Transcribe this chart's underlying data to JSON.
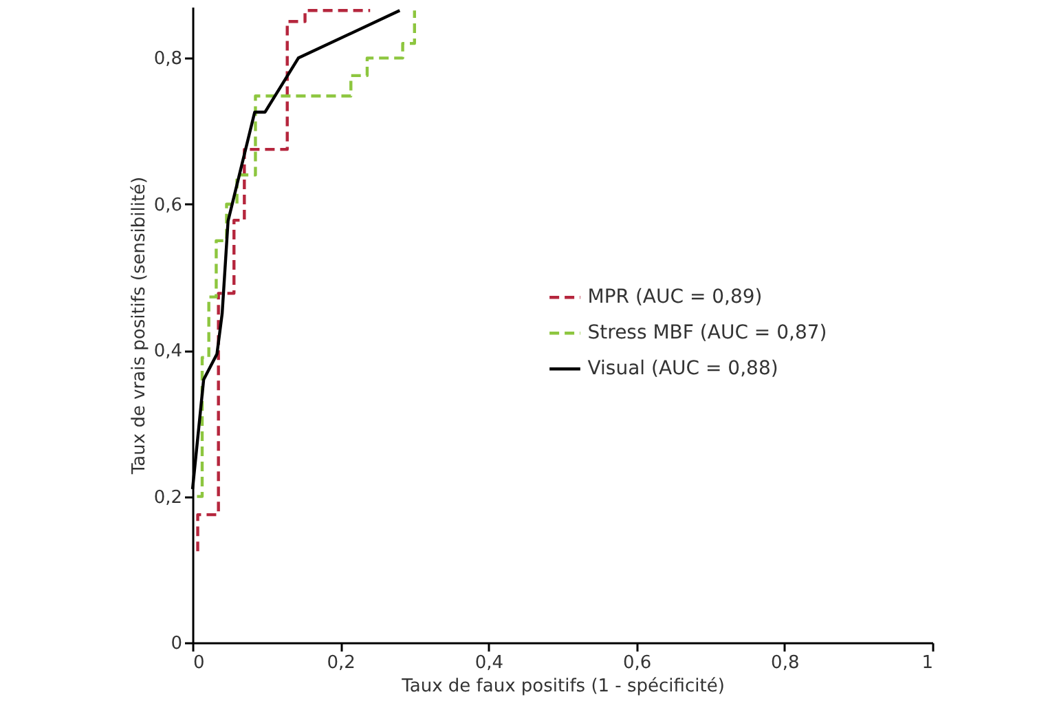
{
  "chart_data": {
    "type": "line",
    "xlabel": "Taux de faux positifs (1 - spécificité)",
    "ylabel": "Taux de vrais positifs (sensibilité)",
    "xlim": [
      0,
      1
    ],
    "ylim": [
      0,
      0.87
    ],
    "xticks": [
      0,
      {
        "value": 0.2,
        "label": "0,2"
      },
      {
        "value": 0.4,
        "label": "0,4"
      },
      {
        "value": 0.6,
        "label": "0,6"
      },
      {
        "value": 0.8,
        "label": "0,8"
      },
      1
    ],
    "yticks": [
      0,
      {
        "value": 0.2,
        "label": "0,2"
      },
      {
        "value": 0.4,
        "label": "0,4"
      },
      {
        "value": 0.6,
        "label": "0,6"
      },
      {
        "value": 0.8,
        "label": "0,8"
      }
    ],
    "legend": "right",
    "marker": "none",
    "series": [
      {
        "name": "MPR (AUC = 0,89)",
        "color": "#b5263d",
        "line_style": "dashed",
        "x": [
          0.007,
          0.007,
          0.035,
          0.035,
          0.056,
          0.056,
          0.07,
          0.07,
          0.128,
          0.128,
          0.152,
          0.152,
          0.24
        ],
        "values": [
          0.125,
          0.175,
          0.175,
          0.478,
          0.478,
          0.578,
          0.578,
          0.675,
          0.675,
          0.85,
          0.85,
          0.865,
          0.865
        ]
      },
      {
        "name": "Stress MBF (AUC = 0,87)",
        "color": "#8dc63f",
        "line_style": "dashed",
        "x": [
          0.006,
          0.013,
          0.013,
          0.022,
          0.022,
          0.032,
          0.032,
          0.046,
          0.046,
          0.06,
          0.06,
          0.085,
          0.085,
          0.214,
          0.214,
          0.236,
          0.236,
          0.284,
          0.284,
          0.3,
          0.3
        ],
        "values": [
          0.2,
          0.2,
          0.39,
          0.39,
          0.473,
          0.473,
          0.55,
          0.55,
          0.6,
          0.6,
          0.64,
          0.64,
          0.748,
          0.748,
          0.776,
          0.776,
          0.8,
          0.8,
          0.82,
          0.82,
          0.865
        ]
      },
      {
        "name": "Visual (AUC = 0,88)",
        "color": "#000000",
        "line_style": "solid",
        "x": [
          0,
          0.015,
          0.033,
          0.04,
          0.048,
          0.084,
          0.098,
          0.143,
          0.28
        ],
        "values": [
          0.21,
          0.36,
          0.395,
          0.45,
          0.577,
          0.726,
          0.726,
          0.8,
          0.865
        ]
      }
    ]
  }
}
